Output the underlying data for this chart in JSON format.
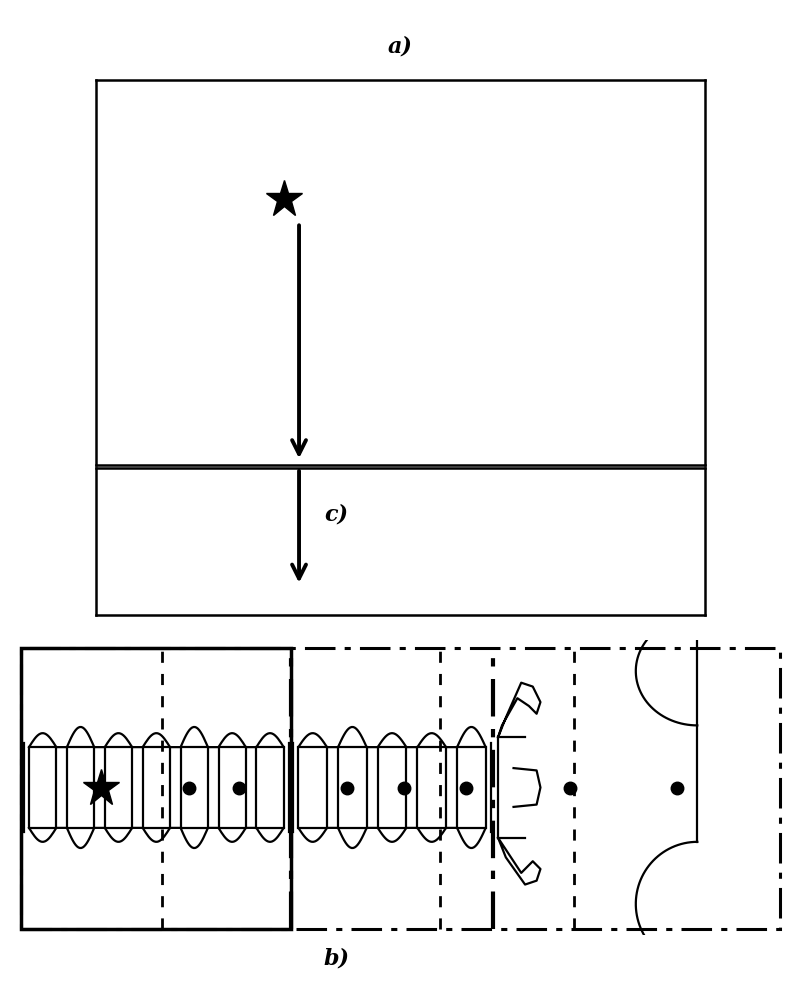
{
  "fig_width": 8.01,
  "fig_height": 10.0,
  "bg_color": "#ffffff",
  "label_a": "a)",
  "label_b": "b)",
  "label_c": "c)"
}
